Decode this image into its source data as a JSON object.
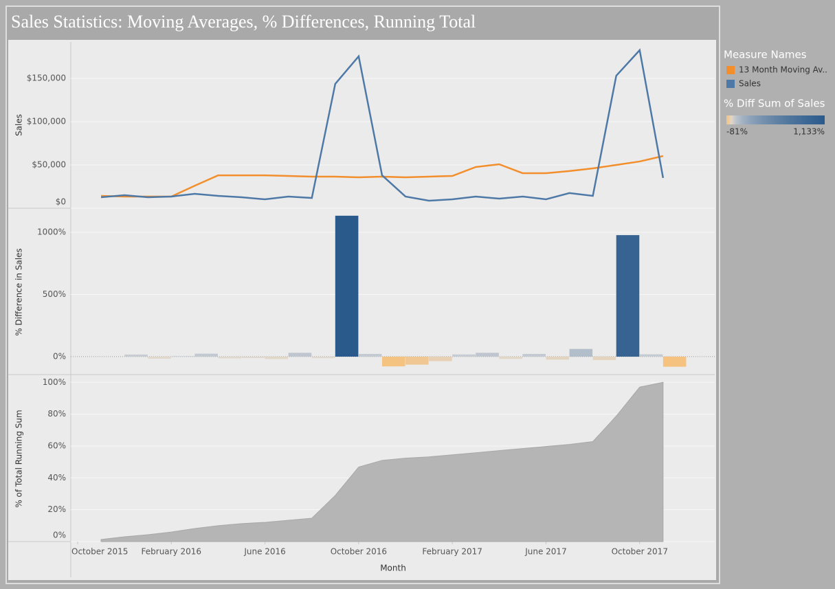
{
  "title": "Sales Statistics:  Moving Averages, % Differences, Running Total",
  "chart_data": [
    {
      "type": "line",
      "ylabel": "Sales",
      "x": [
        "2015-11",
        "2015-12",
        "2016-01",
        "2016-02",
        "2016-03",
        "2016-04",
        "2016-05",
        "2016-06",
        "2016-07",
        "2016-08",
        "2016-09",
        "2016-10",
        "2016-11",
        "2016-12",
        "2017-01",
        "2017-02",
        "2017-03",
        "2017-04",
        "2017-05",
        "2017-06",
        "2017-07",
        "2017-08",
        "2017-09",
        "2017-10",
        "2017-11"
      ],
      "xlim": [
        "2015-10",
        "2018-01"
      ],
      "ylim": [
        0,
        192000
      ],
      "yticks": [
        {
          "value": 0,
          "label": "$0"
        },
        {
          "value": 50000,
          "label": "$50,000"
        },
        {
          "value": 100000,
          "label": "$100,000"
        },
        {
          "value": 150000,
          "label": "$150,000"
        }
      ],
      "grid": true,
      "legend_title": "Measure Names",
      "series": [
        {
          "name": "13 Month Moving Av..",
          "color": "#f28e2b",
          "values": [
            14300,
            13500,
            13500,
            13500,
            26000,
            38000,
            38000,
            38000,
            37300,
            36500,
            36500,
            35700,
            36500,
            35700,
            36500,
            37300,
            47600,
            50800,
            40500,
            40500,
            42900,
            46000,
            50000,
            54000,
            60300
          ]
        },
        {
          "name": "Sales",
          "color": "#4e79a7",
          "values": [
            12700,
            15100,
            12700,
            13500,
            16700,
            14300,
            12700,
            10300,
            13500,
            11900,
            143600,
            175400,
            38000,
            13500,
            8700,
            10300,
            13500,
            11100,
            13500,
            10300,
            17500,
            14300,
            153000,
            182500,
            35000
          ]
        }
      ]
    },
    {
      "type": "bar",
      "ylabel": "% Difference in Sales",
      "x": [
        "2015-11",
        "2015-12",
        "2016-01",
        "2016-02",
        "2016-03",
        "2016-04",
        "2016-05",
        "2016-06",
        "2016-07",
        "2016-08",
        "2016-09",
        "2016-10",
        "2016-11",
        "2016-12",
        "2017-01",
        "2017-02",
        "2017-03",
        "2017-04",
        "2017-05",
        "2017-06",
        "2017-07",
        "2017-08",
        "2017-09",
        "2017-10",
        "2017-11"
      ],
      "xlim": [
        "2015-10",
        "2018-01"
      ],
      "values": [
        null,
        17,
        -16,
        6,
        24,
        -14,
        -11,
        -19,
        31,
        -12,
        1133,
        22,
        -78,
        -64,
        -36,
        18,
        31,
        -18,
        22,
        -24,
        62,
        -27,
        977,
        19,
        -81
      ],
      "ylim": [
        -144,
        1182
      ],
      "yticks": [
        {
          "value": 0,
          "label": "0%"
        },
        {
          "value": 500,
          "label": "500%"
        },
        {
          "value": 1000,
          "label": "1000%"
        }
      ],
      "grid": true,
      "color_legend": {
        "title": "% Diff Sum of Sales",
        "min": {
          "value": -81,
          "label": "-81%"
        },
        "max": {
          "value": 1133,
          "label": "1,133%"
        },
        "colors": [
          "#f5c27f",
          "#dcdcdc",
          "#2a5a8c"
        ]
      }
    },
    {
      "type": "area",
      "ylabel": "% of Total Running Sum",
      "xlabel": "Month",
      "x": [
        "2015-11",
        "2015-12",
        "2016-01",
        "2016-02",
        "2016-03",
        "2016-04",
        "2016-05",
        "2016-06",
        "2016-07",
        "2016-08",
        "2016-09",
        "2016-10",
        "2016-11",
        "2016-12",
        "2017-01",
        "2017-02",
        "2017-03",
        "2017-04",
        "2017-05",
        "2017-06",
        "2017-07",
        "2017-08",
        "2017-09",
        "2017-10",
        "2017-11"
      ],
      "xlim": [
        "2015-10",
        "2018-01"
      ],
      "xticks": [
        {
          "value": "2015-10",
          "label": "October 2015"
        },
        {
          "value": "2016-02",
          "label": "February 2016"
        },
        {
          "value": "2016-06",
          "label": "June 2016"
        },
        {
          "value": "2016-10",
          "label": "October 2016"
        },
        {
          "value": "2017-02",
          "label": "February 2017"
        },
        {
          "value": "2017-06",
          "label": "June 2017"
        },
        {
          "value": "2017-10",
          "label": "October 2017"
        }
      ],
      "values": [
        1.3,
        3,
        4.3,
        6,
        8.2,
        10,
        11.3,
        12.1,
        13.4,
        14.7,
        29,
        46.8,
        51,
        52.4,
        53.2,
        54.5,
        55.8,
        57.1,
        58.4,
        59.7,
        61,
        62.8,
        78.8,
        97,
        100
      ],
      "ylim": [
        0,
        104
      ],
      "yticks": [
        {
          "value": 0,
          "label": "0%"
        },
        {
          "value": 20,
          "label": "20%"
        },
        {
          "value": 40,
          "label": "40%"
        },
        {
          "value": 60,
          "label": "60%"
        },
        {
          "value": 80,
          "label": "80%"
        },
        {
          "value": 100,
          "label": "100%"
        }
      ],
      "grid": true,
      "color": "#b5b5b5"
    }
  ]
}
